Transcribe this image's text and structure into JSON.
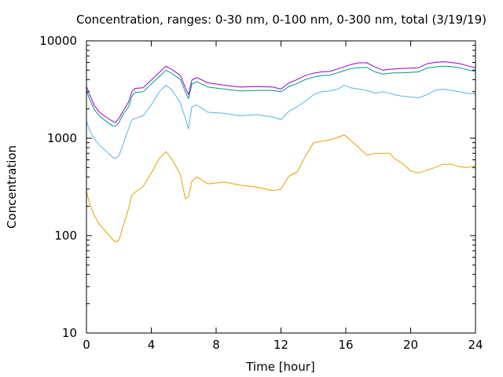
{
  "chart_data": {
    "type": "line",
    "title": "Concentration, ranges: 0-30 nm, 0-100 nm, 0-300 nm, total (3/19/19)",
    "xlabel": "Time [hour]",
    "ylabel": "Concentration",
    "xlim": [
      0,
      24
    ],
    "ylim": [
      10,
      10000
    ],
    "yscale": "log",
    "grid": false,
    "legend": "none",
    "xticks": [
      0,
      4,
      8,
      12,
      16,
      20,
      24
    ],
    "xtick_labels": [
      "0",
      "4",
      "8",
      "12",
      "16",
      "20",
      "24"
    ],
    "yticks": [
      10,
      100,
      1000,
      10000
    ],
    "ytick_labels": [
      "10",
      "100",
      "1000",
      "10000"
    ],
    "series": [
      {
        "color": "#e69f00",
        "x": [
          0,
          0.2,
          0.5,
          0.8,
          1.2,
          1.6,
          1.8,
          2.0,
          2.3,
          2.6,
          2.8,
          3.0,
          3.5,
          4.0,
          4.5,
          4.9,
          5.3,
          5.8,
          6.1,
          6.3,
          6.5,
          6.8,
          7.5,
          8.5,
          9.5,
          10.5,
          11.5,
          12.0,
          12.5,
          13.0,
          13.5,
          14.0,
          14.5,
          15.0,
          15.5,
          15.9,
          16.3,
          16.8,
          17.3,
          17.8,
          18.3,
          18.7,
          19.0,
          19.5,
          20.0,
          20.5,
          21.0,
          21.5,
          22.0,
          22.5,
          23.0,
          23.5,
          24.0
        ],
        "y": [
          290,
          210,
          160,
          130,
          110,
          92,
          86,
          90,
          130,
          190,
          260,
          280,
          320,
          440,
          620,
          730,
          600,
          420,
          240,
          250,
          360,
          400,
          340,
          355,
          330,
          315,
          290,
          300,
          410,
          450,
          650,
          900,
          930,
          960,
          1020,
          1080,
          950,
          800,
          670,
          700,
          700,
          700,
          620,
          550,
          460,
          440,
          470,
          500,
          540,
          540,
          510,
          500,
          520
        ]
      },
      {
        "color": "#56b4e9",
        "x": [
          0,
          0.2,
          0.5,
          0.8,
          1.2,
          1.6,
          1.8,
          2.0,
          2.3,
          2.6,
          2.8,
          3.0,
          3.5,
          4.0,
          4.5,
          4.9,
          5.3,
          5.8,
          6.1,
          6.3,
          6.5,
          6.8,
          7.5,
          8.5,
          9.5,
          10.5,
          11.5,
          12.0,
          12.5,
          13.0,
          13.5,
          14.0,
          14.5,
          15.0,
          15.5,
          15.9,
          16.3,
          16.8,
          17.3,
          17.8,
          18.3,
          18.7,
          19.0,
          19.5,
          20.0,
          20.5,
          21.0,
          21.5,
          22.0,
          22.5,
          23.0,
          23.5,
          24.0
        ],
        "y": [
          1500,
          1200,
          980,
          850,
          740,
          640,
          620,
          660,
          900,
          1250,
          1550,
          1600,
          1700,
          2200,
          3000,
          3500,
          3100,
          2300,
          1600,
          1250,
          2100,
          2200,
          1850,
          1800,
          1700,
          1750,
          1650,
          1550,
          1900,
          2100,
          2400,
          2800,
          3000,
          3050,
          3200,
          3500,
          3300,
          3200,
          3100,
          2900,
          3000,
          2900,
          2800,
          2700,
          2650,
          2600,
          2800,
          3100,
          3200,
          3100,
          3000,
          2900,
          2850
        ]
      },
      {
        "color": "#009e73",
        "x": [
          0,
          0.2,
          0.5,
          0.8,
          1.2,
          1.6,
          1.8,
          2.0,
          2.3,
          2.6,
          2.8,
          3.0,
          3.5,
          4.0,
          4.5,
          4.9,
          5.3,
          5.8,
          6.1,
          6.3,
          6.5,
          6.8,
          7.5,
          8.5,
          9.5,
          10.5,
          11.5,
          12.0,
          12.5,
          13.0,
          13.5,
          14.0,
          14.5,
          15.0,
          15.5,
          15.9,
          16.3,
          16.8,
          17.3,
          17.8,
          18.3,
          18.7,
          19.0,
          19.5,
          20.0,
          20.5,
          21.0,
          21.5,
          22.0,
          22.5,
          23.0,
          23.5,
          24.0
        ],
        "y": [
          3100,
          2500,
          1950,
          1700,
          1500,
          1340,
          1330,
          1450,
          1800,
          2100,
          2700,
          2950,
          3000,
          3600,
          4300,
          5000,
          4600,
          4000,
          3000,
          2550,
          3600,
          3800,
          3350,
          3200,
          3050,
          3100,
          3100,
          3000,
          3400,
          3650,
          4000,
          4250,
          4400,
          4450,
          4700,
          4950,
          5200,
          5300,
          5350,
          4800,
          4550,
          4650,
          4700,
          4700,
          4750,
          4800,
          5250,
          5400,
          5500,
          5450,
          5300,
          5050,
          4850
        ]
      },
      {
        "color": "#9400d3",
        "x": [
          0,
          0.2,
          0.5,
          0.8,
          1.2,
          1.6,
          1.8,
          2.0,
          2.3,
          2.6,
          2.8,
          3.0,
          3.5,
          4.0,
          4.5,
          4.9,
          5.3,
          5.8,
          6.1,
          6.3,
          6.5,
          6.8,
          7.5,
          8.5,
          9.5,
          10.5,
          11.5,
          12.0,
          12.5,
          13.0,
          13.5,
          14.0,
          14.5,
          15.0,
          15.5,
          15.9,
          16.3,
          16.8,
          17.3,
          17.8,
          18.3,
          18.7,
          19.0,
          19.5,
          20.0,
          20.5,
          21.0,
          21.5,
          22.0,
          22.5,
          23.0,
          23.5,
          24.0
        ],
        "y": [
          3400,
          2800,
          2150,
          1850,
          1650,
          1500,
          1450,
          1600,
          1950,
          2350,
          3000,
          3250,
          3300,
          3950,
          4750,
          5500,
          5050,
          4400,
          3300,
          2800,
          3950,
          4200,
          3700,
          3500,
          3350,
          3400,
          3350,
          3200,
          3700,
          4000,
          4400,
          4650,
          4800,
          4850,
          5150,
          5400,
          5700,
          5950,
          5950,
          5400,
          5000,
          5100,
          5150,
          5200,
          5250,
          5300,
          5800,
          6000,
          6100,
          6000,
          5850,
          5550,
          5300
        ]
      }
    ]
  }
}
